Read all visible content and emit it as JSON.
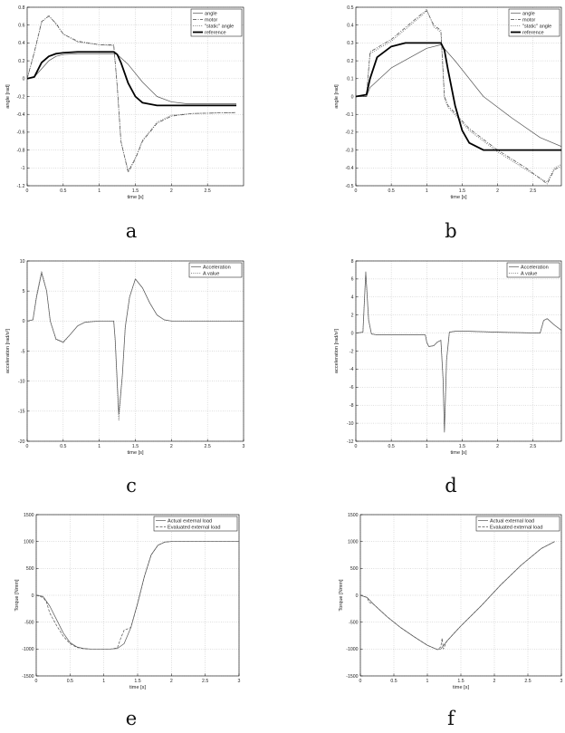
{
  "chart_data": [
    {
      "id": "a",
      "panel_label": "a",
      "type": "line",
      "xlabel": "time [s]",
      "ylabel": "angle [rad]",
      "xlim": [
        0,
        3
      ],
      "ylim": [
        -1.2,
        0.8
      ],
      "xticks": [
        0,
        0.5,
        1,
        1.5,
        2,
        2.5
      ],
      "yticks": [
        -1.2,
        -1,
        -0.8,
        -0.6,
        -0.4,
        -0.2,
        0,
        0.2,
        0.4,
        0.6,
        0.8
      ],
      "legend_position": "top-right",
      "series": [
        {
          "name": "angle",
          "style": "solid-thin",
          "x": [
            0,
            0.1,
            0.2,
            0.3,
            0.4,
            0.5,
            0.7,
            1,
            1.2,
            1.25,
            1.4,
            1.6,
            1.8,
            2.0,
            2.2,
            2.9
          ],
          "y": [
            0,
            0.02,
            0.11,
            0.2,
            0.25,
            0.27,
            0.28,
            0.28,
            0.28,
            0.27,
            0.16,
            -0.04,
            -0.2,
            -0.26,
            -0.28,
            -0.28
          ]
        },
        {
          "name": "motor",
          "style": "dashdot",
          "x": [
            0,
            0.1,
            0.2,
            0.3,
            0.4,
            0.5,
            0.7,
            1,
            1.2,
            1.25,
            1.3,
            1.4,
            1.5,
            1.6,
            1.8,
            2.0,
            2.3,
            2.9
          ],
          "y": [
            0,
            0.3,
            0.64,
            0.7,
            0.62,
            0.5,
            0.42,
            0.38,
            0.38,
            -0.1,
            -0.7,
            -1.05,
            -0.9,
            -0.7,
            -0.5,
            -0.42,
            -0.39,
            -0.38
          ]
        },
        {
          "name": "\"static\" angle",
          "style": "dotted",
          "x": [
            0,
            0.1,
            0.2,
            0.3,
            0.4,
            0.5,
            0.7,
            1,
            1.2,
            1.25,
            1.3,
            1.4,
            1.5,
            1.6,
            1.8,
            2.0,
            2.3,
            2.9
          ],
          "y": [
            0,
            0.29,
            0.63,
            0.71,
            0.61,
            0.5,
            0.41,
            0.38,
            0.37,
            -0.1,
            -0.71,
            -1.03,
            -0.89,
            -0.69,
            -0.49,
            -0.41,
            -0.39,
            -0.38
          ]
        },
        {
          "name": "reference",
          "style": "solid-bold",
          "x": [
            0,
            0.1,
            0.15,
            0.2,
            0.3,
            0.4,
            0.5,
            0.7,
            1.0,
            1.2,
            1.25,
            1.3,
            1.4,
            1.5,
            1.6,
            1.8,
            2.0,
            2.5,
            2.9
          ],
          "y": [
            0,
            0.02,
            0.1,
            0.18,
            0.25,
            0.28,
            0.29,
            0.3,
            0.3,
            0.3,
            0.27,
            0.18,
            -0.05,
            -0.2,
            -0.27,
            -0.3,
            -0.3,
            -0.3,
            -0.3
          ]
        }
      ]
    },
    {
      "id": "b",
      "panel_label": "b",
      "type": "line",
      "xlabel": "time [s]",
      "ylabel": "angle [rad]",
      "xlim": [
        0,
        2.9
      ],
      "ylim": [
        -0.5,
        0.5
      ],
      "xticks": [
        0,
        0.5,
        1,
        1.5,
        2,
        2.5
      ],
      "yticks": [
        -0.5,
        -0.4,
        -0.3,
        -0.2,
        -0.1,
        0,
        0.1,
        0.2,
        0.3,
        0.4,
        0.5
      ],
      "legend_position": "top-right",
      "series": [
        {
          "name": "angle",
          "style": "solid-thin",
          "x": [
            0,
            0.15,
            0.2,
            0.5,
            1.0,
            1.2,
            1.4,
            1.8,
            2.2,
            2.6,
            2.9
          ],
          "y": [
            0,
            0.0,
            0.05,
            0.16,
            0.27,
            0.29,
            0.2,
            0.0,
            -0.12,
            -0.23,
            -0.28
          ]
        },
        {
          "name": "motor",
          "style": "dashdot",
          "x": [
            0,
            0.15,
            0.2,
            0.5,
            0.8,
            0.95,
            1.0,
            1.1,
            1.2,
            1.25,
            1.3,
            1.6,
            2.0,
            2.4,
            2.7,
            2.8,
            2.9
          ],
          "y": [
            0,
            0.0,
            0.25,
            0.32,
            0.42,
            0.47,
            0.48,
            0.4,
            0.37,
            0.0,
            -0.05,
            -0.18,
            -0.3,
            -0.4,
            -0.49,
            -0.41,
            -0.39
          ]
        },
        {
          "name": "\"static\" angle",
          "style": "dotted",
          "x": [
            0,
            0.15,
            0.2,
            0.5,
            0.8,
            0.95,
            1.0,
            1.1,
            1.2,
            1.25,
            1.3,
            1.6,
            2.0,
            2.4,
            2.7,
            2.8,
            2.9
          ],
          "y": [
            0,
            0.0,
            0.24,
            0.31,
            0.41,
            0.46,
            0.49,
            0.39,
            0.36,
            -0.01,
            -0.06,
            -0.19,
            -0.31,
            -0.41,
            -0.48,
            -0.4,
            -0.38
          ]
        },
        {
          "name": "reference",
          "style": "solid-bold",
          "x": [
            0,
            0.15,
            0.2,
            0.3,
            0.5,
            0.7,
            1.0,
            1.2,
            1.25,
            1.3,
            1.4,
            1.5,
            1.6,
            1.8,
            2.0,
            2.5,
            2.9
          ],
          "y": [
            0,
            0.01,
            0.1,
            0.22,
            0.28,
            0.3,
            0.3,
            0.3,
            0.26,
            0.15,
            -0.05,
            -0.19,
            -0.26,
            -0.3,
            -0.3,
            -0.3,
            -0.3
          ]
        }
      ]
    },
    {
      "id": "c",
      "panel_label": "c",
      "type": "line",
      "xlabel": "time [s]",
      "ylabel": "acceleration [rad/s²]",
      "xlim": [
        0,
        3
      ],
      "ylim": [
        -20,
        10
      ],
      "xticks": [
        0,
        0.5,
        1,
        1.5,
        2,
        2.5,
        3
      ],
      "yticks": [
        -20,
        -15,
        -10,
        -5,
        0,
        5,
        10
      ],
      "legend_position": "top-right",
      "series": [
        {
          "name": "Acceleration",
          "style": "solid-thin",
          "x": [
            0,
            0.08,
            0.13,
            0.2,
            0.27,
            0.32,
            0.4,
            0.5,
            0.6,
            0.7,
            0.8,
            1.0,
            1.2,
            1.22,
            1.27,
            1.32,
            1.36,
            1.42,
            1.5,
            1.6,
            1.7,
            1.8,
            1.9,
            2.0,
            2.5,
            3.0
          ],
          "y": [
            0,
            0.2,
            4,
            8,
            5,
            0,
            -3,
            -3.5,
            -2.2,
            -0.8,
            -0.2,
            0,
            0,
            -3,
            -15.5,
            -9,
            -1,
            4,
            7,
            5.5,
            3,
            1,
            0.2,
            0,
            0,
            0
          ]
        },
        {
          "name": "A value",
          "style": "dotted",
          "x": [
            0,
            0.08,
            0.13,
            0.2,
            0.27,
            0.32,
            0.4,
            0.5,
            0.6,
            0.7,
            0.8,
            1.0,
            1.2,
            1.22,
            1.27,
            1.32,
            1.36,
            1.42,
            1.5,
            1.6,
            1.7,
            1.8,
            1.9,
            2.0,
            2.5,
            3.0
          ],
          "y": [
            0,
            0.2,
            4.3,
            8.3,
            5,
            0,
            -3.1,
            -3.6,
            -2.2,
            -0.8,
            -0.2,
            0,
            0,
            -3.2,
            -16.5,
            -9,
            -1,
            4,
            7,
            5.5,
            3,
            1,
            0.2,
            0,
            0,
            0
          ]
        }
      ]
    },
    {
      "id": "d",
      "panel_label": "d",
      "type": "line",
      "xlabel": "time [s]",
      "ylabel": "acceleration [rad/s²]",
      "xlim": [
        0,
        2.9
      ],
      "ylim": [
        -12,
        8
      ],
      "xticks": [
        0,
        0.5,
        1,
        1.5,
        2,
        2.5
      ],
      "yticks": [
        -12,
        -10,
        -8,
        -6,
        -4,
        -2,
        0,
        2,
        4,
        6,
        8
      ],
      "legend_position": "top-right",
      "series": [
        {
          "name": "Acceleration",
          "style": "solid-thin",
          "x": [
            0,
            0.1,
            0.14,
            0.18,
            0.22,
            0.3,
            0.5,
            0.98,
            1.0,
            1.03,
            1.1,
            1.15,
            1.2,
            1.23,
            1.25,
            1.28,
            1.32,
            1.4,
            1.6,
            2.0,
            2.6,
            2.65,
            2.7,
            2.8,
            2.9
          ],
          "y": [
            0,
            0.1,
            6.8,
            1.5,
            -0.1,
            -0.2,
            -0.2,
            -0.2,
            -1,
            -1.5,
            -1.4,
            -1,
            -0.8,
            -5,
            -11,
            -3,
            0.1,
            0.2,
            0.2,
            0.1,
            0,
            1.4,
            1.6,
            0.9,
            0.3
          ]
        },
        {
          "name": "A value",
          "style": "dotted",
          "x": [
            0,
            0.1,
            0.14,
            0.18,
            0.22,
            0.3,
            0.5,
            0.98,
            1.0,
            1.03,
            1.1,
            1.15,
            1.2,
            1.23,
            1.25,
            1.28,
            1.32,
            1.4,
            1.6,
            2.0,
            2.6,
            2.65,
            2.7,
            2.8,
            2.9
          ],
          "y": [
            0,
            0.1,
            6.6,
            1.4,
            -0.1,
            -0.2,
            -0.2,
            -0.2,
            -1,
            -1.5,
            -1.4,
            -1,
            -0.8,
            -5,
            -10.8,
            -3,
            0.1,
            0.2,
            0.2,
            0.1,
            0,
            1.4,
            1.6,
            0.9,
            0.3
          ]
        }
      ]
    },
    {
      "id": "e",
      "panel_label": "e",
      "type": "line",
      "xlabel": "time [s]",
      "ylabel": "Torque [Nmm]",
      "xlim": [
        0,
        3
      ],
      "ylim": [
        -1500,
        1500
      ],
      "xticks": [
        0,
        0.5,
        1,
        1.5,
        2,
        2.5,
        3
      ],
      "yticks": [
        -1500,
        -1000,
        -500,
        0,
        500,
        1000,
        1500
      ],
      "legend_position": "top-right",
      "series": [
        {
          "name": "Actual external load",
          "style": "solid-thin",
          "x": [
            0,
            0.1,
            0.2,
            0.3,
            0.4,
            0.5,
            0.6,
            0.7,
            0.8,
            0.9,
            1.0,
            1.1,
            1.2,
            1.3,
            1.4,
            1.5,
            1.6,
            1.7,
            1.8,
            1.9,
            2.0,
            2.5,
            3.0
          ],
          "y": [
            0,
            -20,
            -200,
            -450,
            -700,
            -880,
            -960,
            -990,
            -1000,
            -1000,
            -1000,
            -1000,
            -990,
            -900,
            -600,
            -150,
            350,
            750,
            930,
            990,
            1000,
            1000,
            1000
          ]
        },
        {
          "name": "Evaluated external load",
          "style": "dashed",
          "x": [
            0,
            0.1,
            0.15,
            0.2,
            0.3,
            0.4,
            0.5,
            0.6,
            0.7,
            0.8,
            0.9,
            1.0,
            1.1,
            1.2,
            1.25,
            1.3,
            1.4,
            1.5,
            1.6,
            1.7,
            1.8,
            1.9,
            2.0,
            2.5,
            3.0
          ],
          "y": [
            0,
            -40,
            -120,
            -330,
            -560,
            -760,
            -900,
            -970,
            -995,
            -1000,
            -1000,
            -1000,
            -1000,
            -980,
            -800,
            -650,
            -600,
            -150,
            350,
            750,
            930,
            990,
            1000,
            1000,
            1000
          ]
        }
      ]
    },
    {
      "id": "f",
      "panel_label": "f",
      "type": "line",
      "xlabel": "time [s]",
      "ylabel": "Torque [Nmm]",
      "xlim": [
        0,
        3
      ],
      "ylim": [
        -1500,
        1500
      ],
      "xticks": [
        0,
        0.5,
        1,
        1.5,
        2,
        2.5,
        3
      ],
      "yticks": [
        -1500,
        -1000,
        -500,
        0,
        500,
        1000,
        1500
      ],
      "legend_position": "top-right",
      "series": [
        {
          "name": "Actual external load",
          "style": "solid-thin",
          "x": [
            0,
            0.1,
            0.2,
            0.4,
            0.6,
            0.8,
            1.0,
            1.15,
            1.2,
            1.3,
            1.5,
            1.8,
            2.1,
            2.4,
            2.7,
            2.9
          ],
          "y": [
            0,
            -40,
            -170,
            -400,
            -600,
            -770,
            -930,
            -1010,
            -1000,
            -840,
            -570,
            -200,
            200,
            560,
            870,
            1000
          ]
        },
        {
          "name": "Evaluated external load",
          "style": "dashed",
          "x": [
            0,
            0.1,
            0.13,
            0.2,
            0.4,
            0.6,
            0.8,
            1.0,
            1.15,
            1.2,
            1.22,
            1.24,
            1.28,
            1.3,
            1.5,
            1.8,
            2.1,
            2.4,
            2.7,
            2.9
          ],
          "y": [
            0,
            -40,
            -130,
            -170,
            -400,
            -600,
            -770,
            -930,
            -1010,
            -960,
            -800,
            -1000,
            -880,
            -840,
            -570,
            -200,
            200,
            560,
            870,
            1000
          ]
        }
      ]
    }
  ]
}
